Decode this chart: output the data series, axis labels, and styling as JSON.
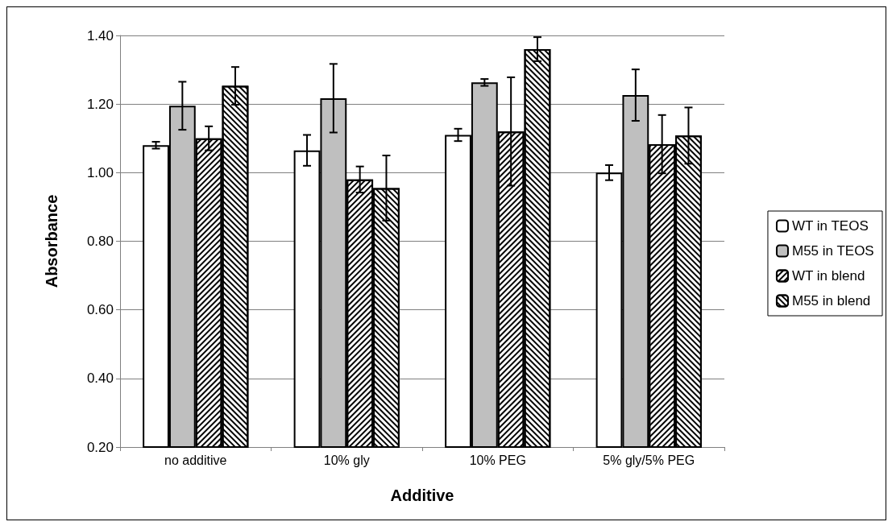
{
  "chart_data": {
    "type": "bar",
    "xlabel": "Additive",
    "ylabel": "Absorbance",
    "categories": [
      "no additive",
      "10% gly",
      "10% PEG",
      "5% gly/5% PEG"
    ],
    "series": [
      {
        "name": "WT in TEOS",
        "color": "#ffffff",
        "values": [
          1.08,
          1.065,
          1.11,
          1.0
        ],
        "errors": [
          0.01,
          0.045,
          0.018,
          0.022
        ]
      },
      {
        "name": "M55 in TEOS",
        "color": "#bfbfbf",
        "values": [
          1.195,
          1.217,
          1.263,
          1.226
        ],
        "errors": [
          0.07,
          0.1,
          0.01,
          0.075
        ]
      },
      {
        "name": "WT in blend",
        "color": "#ffffff",
        "values": [
          1.1,
          0.98,
          1.12,
          1.083
        ],
        "errors": [
          0.035,
          0.038,
          0.158,
          0.085
        ]
      },
      {
        "name": "M55 in blend",
        "color": "#ffffff",
        "values": [
          1.253,
          0.955,
          1.36,
          1.108
        ],
        "errors": [
          0.055,
          0.095,
          0.035,
          0.082
        ]
      }
    ],
    "ylim": [
      0.2,
      1.4
    ],
    "yticks": [
      {
        "value": 0.2,
        "label": "0.20"
      },
      {
        "value": 0.4,
        "label": "0.40"
      },
      {
        "value": 0.6,
        "label": "0.60"
      },
      {
        "value": 0.8,
        "label": "0.80"
      },
      {
        "value": 1.0,
        "label": "1.00"
      },
      {
        "value": 1.2,
        "label": "1.20"
      },
      {
        "value": 1.4,
        "label": "1.40"
      }
    ],
    "grid": "y",
    "legend": "right"
  }
}
